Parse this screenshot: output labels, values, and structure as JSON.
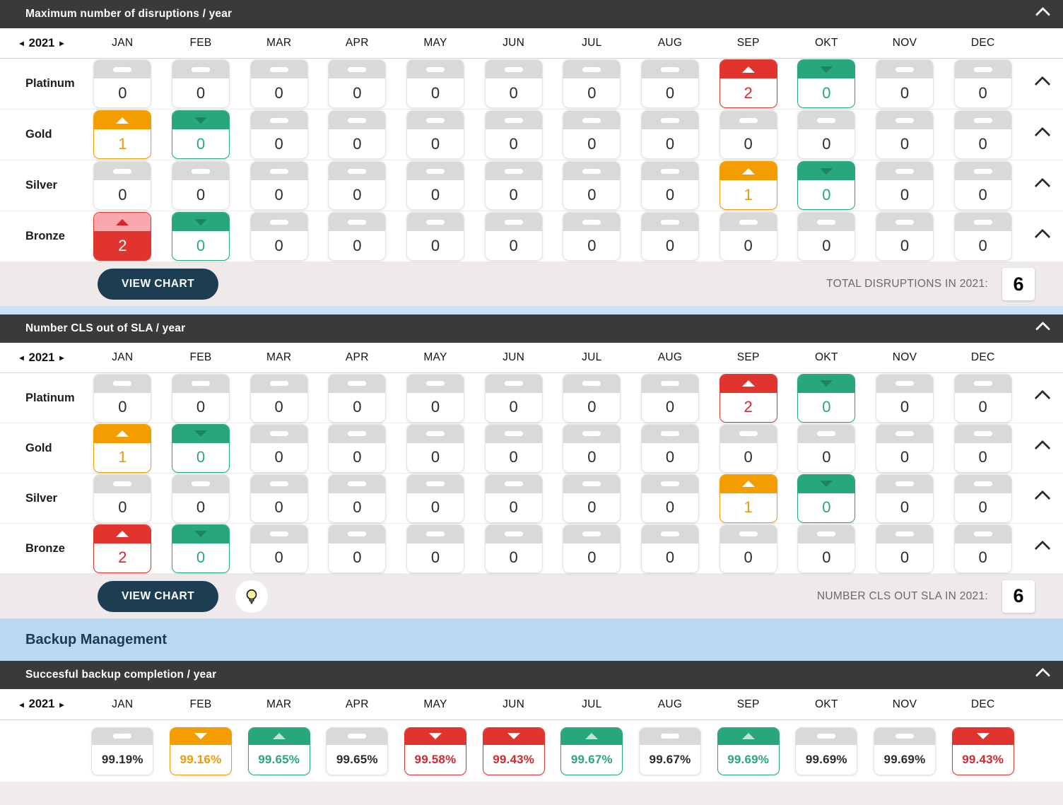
{
  "icons": {
    "prev_year": "◂",
    "next_year": "▸"
  },
  "months": [
    "JAN",
    "FEB",
    "MAR",
    "APR",
    "MAY",
    "JUN",
    "JUL",
    "AUG",
    "SEP",
    "OKT",
    "NOV",
    "DEC"
  ],
  "sections": [
    {
      "title": "Maximum number of disruptions / year",
      "year": "2021",
      "rows": [
        {
          "label": "Platinum",
          "cells": [
            {
              "v": "0",
              "s": "neutral"
            },
            {
              "v": "0",
              "s": "neutral"
            },
            {
              "v": "0",
              "s": "neutral"
            },
            {
              "v": "0",
              "s": "neutral"
            },
            {
              "v": "0",
              "s": "neutral"
            },
            {
              "v": "0",
              "s": "neutral"
            },
            {
              "v": "0",
              "s": "neutral"
            },
            {
              "v": "0",
              "s": "neutral"
            },
            {
              "v": "2",
              "s": "up_red"
            },
            {
              "v": "0",
              "s": "down_green"
            },
            {
              "v": "0",
              "s": "neutral"
            },
            {
              "v": "0",
              "s": "neutral"
            }
          ]
        },
        {
          "label": "Gold",
          "cells": [
            {
              "v": "1",
              "s": "up_orange"
            },
            {
              "v": "0",
              "s": "down_green"
            },
            {
              "v": "0",
              "s": "neutral"
            },
            {
              "v": "0",
              "s": "neutral"
            },
            {
              "v": "0",
              "s": "neutral"
            },
            {
              "v": "0",
              "s": "neutral"
            },
            {
              "v": "0",
              "s": "neutral"
            },
            {
              "v": "0",
              "s": "neutral"
            },
            {
              "v": "0",
              "s": "neutral"
            },
            {
              "v": "0",
              "s": "neutral"
            },
            {
              "v": "0",
              "s": "neutral"
            },
            {
              "v": "0",
              "s": "neutral"
            }
          ]
        },
        {
          "label": "Silver",
          "cells": [
            {
              "v": "0",
              "s": "neutral"
            },
            {
              "v": "0",
              "s": "neutral"
            },
            {
              "v": "0",
              "s": "neutral"
            },
            {
              "v": "0",
              "s": "neutral"
            },
            {
              "v": "0",
              "s": "neutral"
            },
            {
              "v": "0",
              "s": "neutral"
            },
            {
              "v": "0",
              "s": "neutral"
            },
            {
              "v": "0",
              "s": "neutral"
            },
            {
              "v": "1",
              "s": "up_orange"
            },
            {
              "v": "0",
              "s": "down_green"
            },
            {
              "v": "0",
              "s": "neutral"
            },
            {
              "v": "0",
              "s": "neutral"
            }
          ]
        },
        {
          "label": "Bronze",
          "cells": [
            {
              "v": "2",
              "s": "alert_up_red"
            },
            {
              "v": "0",
              "s": "down_green"
            },
            {
              "v": "0",
              "s": "neutral"
            },
            {
              "v": "0",
              "s": "neutral"
            },
            {
              "v": "0",
              "s": "neutral"
            },
            {
              "v": "0",
              "s": "neutral"
            },
            {
              "v": "0",
              "s": "neutral"
            },
            {
              "v": "0",
              "s": "neutral"
            },
            {
              "v": "0",
              "s": "neutral"
            },
            {
              "v": "0",
              "s": "neutral"
            },
            {
              "v": "0",
              "s": "neutral"
            },
            {
              "v": "0",
              "s": "neutral"
            }
          ]
        }
      ],
      "footer": {
        "button_label": "VIEW CHART",
        "total_label": "TOTAL DISRUPTIONS IN 2021:",
        "total_value": "6"
      }
    },
    {
      "title": "Number CLS out of SLA / year",
      "year": "2021",
      "rows": [
        {
          "label": "Platinum",
          "cells": [
            {
              "v": "0",
              "s": "neutral"
            },
            {
              "v": "0",
              "s": "neutral"
            },
            {
              "v": "0",
              "s": "neutral"
            },
            {
              "v": "0",
              "s": "neutral"
            },
            {
              "v": "0",
              "s": "neutral"
            },
            {
              "v": "0",
              "s": "neutral"
            },
            {
              "v": "0",
              "s": "neutral"
            },
            {
              "v": "0",
              "s": "neutral"
            },
            {
              "v": "2",
              "s": "up_red"
            },
            {
              "v": "0",
              "s": "down_green"
            },
            {
              "v": "0",
              "s": "neutral"
            },
            {
              "v": "0",
              "s": "neutral"
            }
          ]
        },
        {
          "label": "Gold",
          "cells": [
            {
              "v": "1",
              "s": "up_orange"
            },
            {
              "v": "0",
              "s": "down_green"
            },
            {
              "v": "0",
              "s": "neutral"
            },
            {
              "v": "0",
              "s": "neutral"
            },
            {
              "v": "0",
              "s": "neutral"
            },
            {
              "v": "0",
              "s": "neutral"
            },
            {
              "v": "0",
              "s": "neutral"
            },
            {
              "v": "0",
              "s": "neutral"
            },
            {
              "v": "0",
              "s": "neutral"
            },
            {
              "v": "0",
              "s": "neutral"
            },
            {
              "v": "0",
              "s": "neutral"
            },
            {
              "v": "0",
              "s": "neutral"
            }
          ]
        },
        {
          "label": "Silver",
          "cells": [
            {
              "v": "0",
              "s": "neutral"
            },
            {
              "v": "0",
              "s": "neutral"
            },
            {
              "v": "0",
              "s": "neutral"
            },
            {
              "v": "0",
              "s": "neutral"
            },
            {
              "v": "0",
              "s": "neutral"
            },
            {
              "v": "0",
              "s": "neutral"
            },
            {
              "v": "0",
              "s": "neutral"
            },
            {
              "v": "0",
              "s": "neutral"
            },
            {
              "v": "1",
              "s": "up_orange"
            },
            {
              "v": "0",
              "s": "down_green"
            },
            {
              "v": "0",
              "s": "neutral"
            },
            {
              "v": "0",
              "s": "neutral"
            }
          ]
        },
        {
          "label": "Bronze",
          "cells": [
            {
              "v": "2",
              "s": "up_red"
            },
            {
              "v": "0",
              "s": "down_green"
            },
            {
              "v": "0",
              "s": "neutral"
            },
            {
              "v": "0",
              "s": "neutral"
            },
            {
              "v": "0",
              "s": "neutral"
            },
            {
              "v": "0",
              "s": "neutral"
            },
            {
              "v": "0",
              "s": "neutral"
            },
            {
              "v": "0",
              "s": "neutral"
            },
            {
              "v": "0",
              "s": "neutral"
            },
            {
              "v": "0",
              "s": "neutral"
            },
            {
              "v": "0",
              "s": "neutral"
            },
            {
              "v": "0",
              "s": "neutral"
            }
          ]
        }
      ],
      "footer": {
        "button_label": "VIEW CHART",
        "total_label": "NUMBER CLS OUT SLA IN 2021:",
        "total_value": "6"
      }
    }
  ],
  "backup": {
    "band_title": "Backup Management",
    "title": "Succesful backup completion / year",
    "year": "2021",
    "cells": [
      {
        "v": "99.19%",
        "s": "neutral"
      },
      {
        "v": "99.16%",
        "s": "down_orange"
      },
      {
        "v": "99.65%",
        "s": "up_green"
      },
      {
        "v": "99.65%",
        "s": "neutral"
      },
      {
        "v": "99.58%",
        "s": "down_red"
      },
      {
        "v": "99.43%",
        "s": "down_red"
      },
      {
        "v": "99.67%",
        "s": "up_green"
      },
      {
        "v": "99.67%",
        "s": "neutral"
      },
      {
        "v": "99.69%",
        "s": "up_green"
      },
      {
        "v": "99.69%",
        "s": "neutral"
      },
      {
        "v": "99.69%",
        "s": "neutral"
      },
      {
        "v": "99.43%",
        "s": "down_red"
      }
    ]
  }
}
